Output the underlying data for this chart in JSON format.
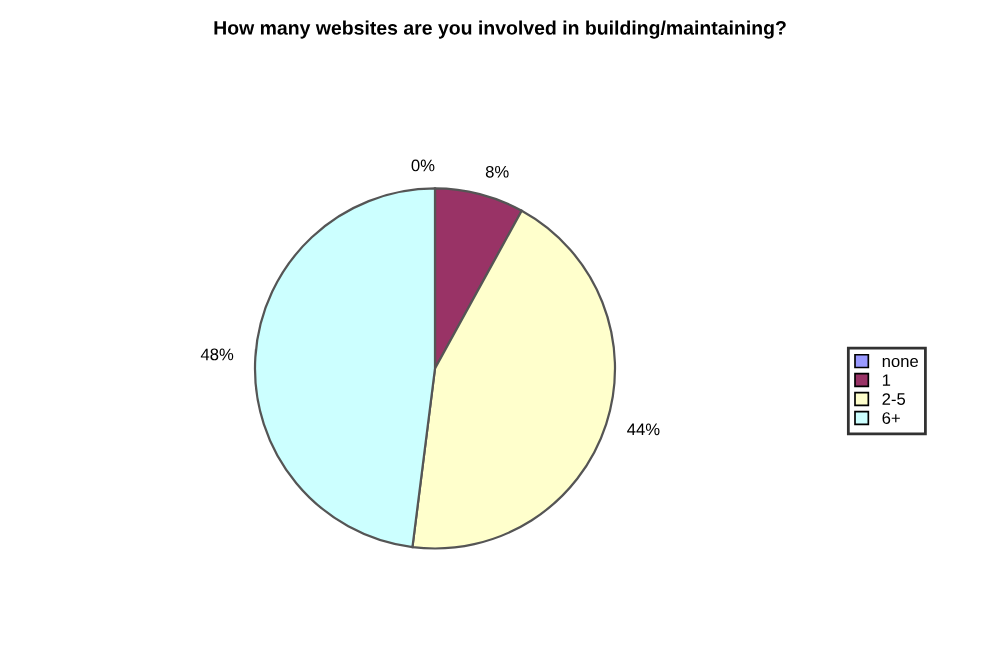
{
  "chart_data": {
    "type": "pie",
    "title": "How many websites are you involved in building/maintaining?",
    "categories": [
      "none",
      "1",
      "2-5",
      "6+"
    ],
    "values": [
      0,
      8,
      44,
      48
    ],
    "value_labels": [
      "0%",
      "8%",
      "44%",
      "48%"
    ],
    "colors": [
      "#9999ff",
      "#993366",
      "#ffffcc",
      "#ccffff"
    ],
    "legend": "right"
  }
}
